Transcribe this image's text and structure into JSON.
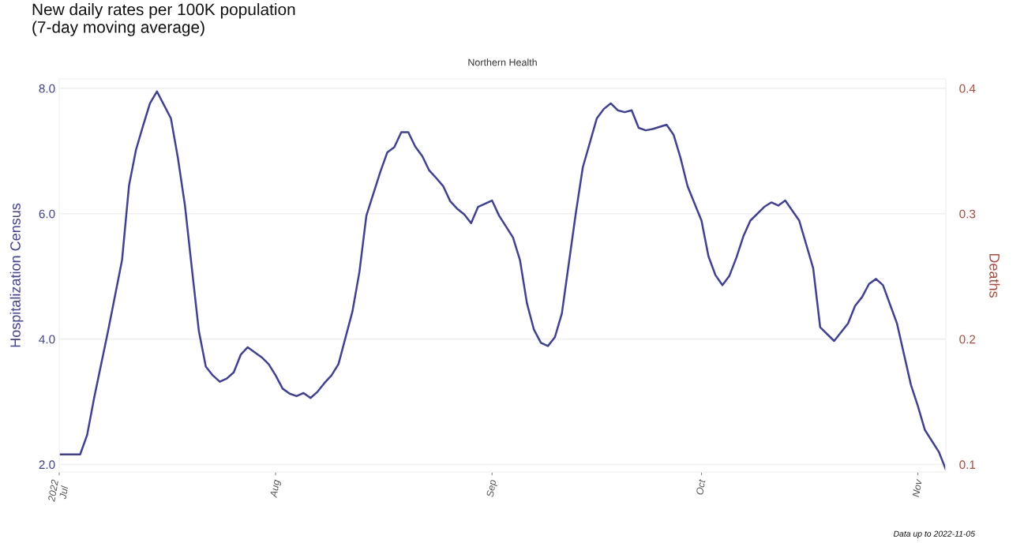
{
  "chart_data": {
    "type": "line",
    "title": "New daily rates per 100K population\n(7-day moving average)",
    "subtitle": "Northern Health",
    "xlabel": null,
    "ylabel": "Hospitalization Census",
    "y2label": "Deaths",
    "annotations": [
      "Data up to 2022-11-05"
    ],
    "series": [
      {
        "color": "#3f3f9e",
        "x": [
          "2022-07-01",
          "2022-07-04",
          "2022-07-05",
          "2022-07-06",
          "2022-07-08",
          "2022-07-10",
          "2022-07-11",
          "2022-07-12",
          "2022-07-13",
          "2022-07-14",
          "2022-07-15",
          "2022-07-17",
          "2022-07-18",
          "2022-07-19",
          "2022-07-20",
          "2022-07-21",
          "2022-07-22",
          "2022-07-23",
          "2022-07-24",
          "2022-07-25",
          "2022-07-26",
          "2022-07-27",
          "2022-07-28",
          "2022-07-30",
          "2022-07-31",
          "2022-08-01",
          "2022-08-02",
          "2022-08-03",
          "2022-08-04",
          "2022-08-05",
          "2022-08-06",
          "2022-08-07",
          "2022-08-08",
          "2022-08-09",
          "2022-08-10",
          "2022-08-12",
          "2022-08-13",
          "2022-08-14",
          "2022-08-16",
          "2022-08-17",
          "2022-08-18",
          "2022-08-19",
          "2022-08-20",
          "2022-08-21",
          "2022-08-22",
          "2022-08-23",
          "2022-08-24",
          "2022-08-25",
          "2022-08-26",
          "2022-08-27",
          "2022-08-28",
          "2022-08-29",
          "2022-08-30",
          "2022-09-01",
          "2022-09-02",
          "2022-09-04",
          "2022-09-05",
          "2022-09-06",
          "2022-09-07",
          "2022-09-08",
          "2022-09-09",
          "2022-09-10",
          "2022-09-11",
          "2022-09-12",
          "2022-09-13",
          "2022-09-14",
          "2022-09-16",
          "2022-09-17",
          "2022-09-18",
          "2022-09-19",
          "2022-09-20",
          "2022-09-21",
          "2022-09-22",
          "2022-09-23",
          "2022-09-24",
          "2022-09-26",
          "2022-09-27",
          "2022-09-28",
          "2022-09-29",
          "2022-10-01",
          "2022-10-02",
          "2022-10-03",
          "2022-10-04",
          "2022-10-05",
          "2022-10-06",
          "2022-10-07",
          "2022-10-08",
          "2022-10-10",
          "2022-10-11",
          "2022-10-12",
          "2022-10-13",
          "2022-10-15",
          "2022-10-17",
          "2022-10-18",
          "2022-10-20",
          "2022-10-22",
          "2022-10-23",
          "2022-10-24",
          "2022-10-25",
          "2022-10-26",
          "2022-10-27",
          "2022-10-29",
          "2022-10-31",
          "2022-11-01",
          "2022-11-02",
          "2022-11-04",
          "2022-11-05"
        ],
        "values": [
          2.16,
          2.16,
          2.47,
          3.06,
          4.13,
          5.26,
          6.45,
          7.02,
          7.4,
          7.76,
          7.95,
          7.52,
          6.89,
          6.14,
          5.13,
          4.13,
          3.56,
          3.42,
          3.32,
          3.37,
          3.47,
          3.75,
          3.87,
          3.71,
          3.6,
          3.42,
          3.21,
          3.13,
          3.09,
          3.14,
          3.06,
          3.16,
          3.3,
          3.42,
          3.6,
          4.44,
          5.07,
          5.97,
          6.67,
          6.98,
          7.06,
          7.3,
          7.3,
          7.07,
          6.92,
          6.69,
          6.57,
          6.44,
          6.2,
          6.08,
          5.99,
          5.85,
          6.11,
          6.21,
          5.97,
          5.62,
          5.26,
          4.57,
          4.15,
          3.94,
          3.89,
          4.03,
          4.41,
          5.21,
          6.01,
          6.74,
          7.52,
          7.67,
          7.76,
          7.65,
          7.62,
          7.65,
          7.37,
          7.33,
          7.35,
          7.42,
          7.26,
          6.89,
          6.44,
          5.89,
          5.32,
          5.02,
          4.86,
          5.01,
          5.3,
          5.64,
          5.89,
          6.11,
          6.18,
          6.13,
          6.21,
          5.89,
          5.13,
          4.19,
          3.97,
          4.25,
          4.53,
          4.67,
          4.88,
          4.96,
          4.86,
          4.25,
          3.27,
          2.93,
          2.55,
          2.2,
          1.92
        ]
      }
    ],
    "xlim": [
      "2022-07-01",
      "2022-11-05"
    ],
    "xticks": [
      {
        "value": "2022-07-01",
        "label": "2022\nJul"
      },
      {
        "value": "2022-08-01",
        "label": "Aug"
      },
      {
        "value": "2022-09-01",
        "label": "Sep"
      },
      {
        "value": "2022-10-01",
        "label": "Oct"
      },
      {
        "value": "2022-11-01",
        "label": "Nov"
      }
    ],
    "ylim": [
      1.88,
      8.15
    ],
    "yticks": [
      {
        "value": 2,
        "label": "2.0"
      },
      {
        "value": 4,
        "label": "4.0"
      },
      {
        "value": 6,
        "label": "6.0"
      },
      {
        "value": 8,
        "label": "8.0"
      }
    ],
    "y2lim": [
      0.094,
      0.4075
    ],
    "y2ticks": [
      0.1,
      0.2,
      0.3,
      0.4
    ],
    "grid": "y",
    "line_style": "solid",
    "marker": "none"
  }
}
